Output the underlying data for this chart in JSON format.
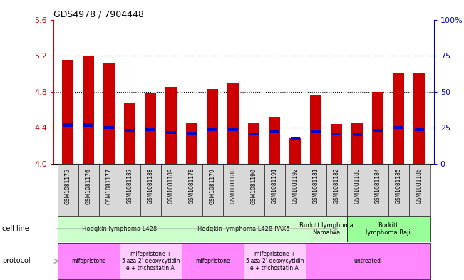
{
  "title": "GDS4978 / 7904448",
  "samples": [
    "GSM1081175",
    "GSM1081176",
    "GSM1081177",
    "GSM1081187",
    "GSM1081188",
    "GSM1081189",
    "GSM1081178",
    "GSM1081179",
    "GSM1081180",
    "GSM1081190",
    "GSM1081191",
    "GSM1081192",
    "GSM1081181",
    "GSM1081182",
    "GSM1081183",
    "GSM1081184",
    "GSM1081185",
    "GSM1081186"
  ],
  "red_values": [
    5.15,
    5.2,
    5.12,
    4.67,
    4.78,
    4.85,
    4.46,
    4.83,
    4.89,
    4.45,
    4.52,
    4.28,
    4.77,
    4.44,
    4.46,
    4.8,
    5.01,
    5.0
  ],
  "blue_values": [
    4.43,
    4.43,
    4.4,
    4.37,
    4.38,
    4.35,
    4.34,
    4.38,
    4.38,
    4.33,
    4.36,
    4.28,
    4.36,
    4.33,
    4.32,
    4.37,
    4.4,
    4.38
  ],
  "y_min": 4.0,
  "y_max": 5.6,
  "y_ticks": [
    4.0,
    4.4,
    4.8,
    5.2,
    5.6
  ],
  "y_right_ticks": [
    0,
    25,
    50,
    75,
    100
  ],
  "y_right_labels": [
    "0",
    "25",
    "50",
    "75",
    "100%"
  ],
  "dotted_lines": [
    4.4,
    4.8,
    5.2
  ],
  "cell_line_groups": [
    {
      "label": "Hodgkin lymphoma L428",
      "start": 0,
      "end": 5,
      "color": "#ccffcc"
    },
    {
      "label": "Hodgkin lymphoma L428-PAX5",
      "start": 6,
      "end": 11,
      "color": "#ccffcc"
    },
    {
      "label": "Burkitt lymphoma\nNamalwa",
      "start": 12,
      "end": 13,
      "color": "#ccffcc"
    },
    {
      "label": "Burkitt\nlymphoma Raji",
      "start": 14,
      "end": 17,
      "color": "#99ff99"
    }
  ],
  "protocol_groups": [
    {
      "label": "mifepristone",
      "start": 0,
      "end": 2,
      "color": "#ff88ff"
    },
    {
      "label": "mifepristone +\n5-aza-2'-deoxycytidin\ne + trichostatin A",
      "start": 3,
      "end": 5,
      "color": "#ffccff"
    },
    {
      "label": "mifepristone",
      "start": 6,
      "end": 8,
      "color": "#ff88ff"
    },
    {
      "label": "mifepristone +\n5-aza-2'-deoxycytidin\ne + trichostatin A",
      "start": 9,
      "end": 11,
      "color": "#ffccff"
    },
    {
      "label": "untreated",
      "start": 12,
      "end": 17,
      "color": "#ff88ff"
    }
  ],
  "bar_width": 0.55,
  "red_color": "#cc0000",
  "blue_color": "#0000cc",
  "axis_left_color": "#cc0000",
  "axis_right_color": "#0000cc",
  "sample_box_color": "#d8d8d8",
  "label_arrow_color": "#aaaaaa"
}
